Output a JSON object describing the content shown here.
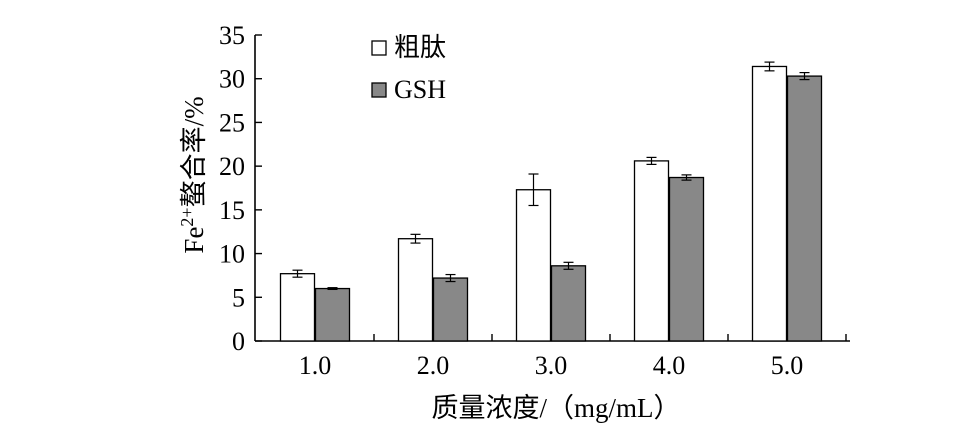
{
  "chart_data": {
    "type": "bar",
    "categories": [
      "1.0",
      "2.0",
      "3.0",
      "4.0",
      "5.0"
    ],
    "series": [
      {
        "name": "粗肽",
        "color": "#ffffff",
        "values": [
          7.7,
          11.7,
          17.3,
          20.6,
          31.4
        ],
        "errors": [
          0.4,
          0.5,
          1.8,
          0.4,
          0.5
        ]
      },
      {
        "name": "GSH",
        "color": "#888888",
        "values": [
          6.0,
          7.2,
          8.6,
          18.7,
          30.3
        ],
        "errors": [
          0.1,
          0.4,
          0.4,
          0.3,
          0.4
        ]
      }
    ],
    "xlabel": "质量浓度/（mg/mL）",
    "ylabel": {
      "base": "Fe",
      "superscript": "2+",
      "rest": "螯合率/%"
    },
    "ylim": [
      0,
      35
    ],
    "yticks": [
      0,
      5,
      10,
      15,
      20,
      25,
      30,
      35
    ],
    "grid": false,
    "legend_position": "top-left"
  }
}
